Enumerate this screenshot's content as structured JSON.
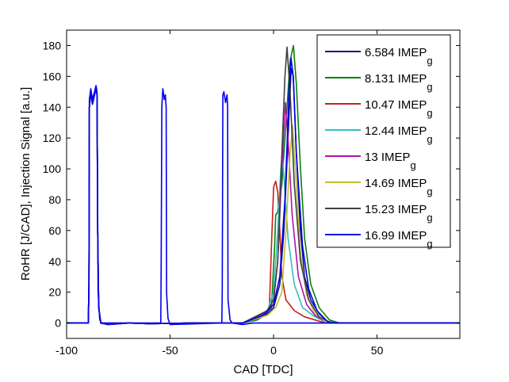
{
  "chart_data": {
    "type": "line",
    "title": "",
    "xlabel": "CAD [TDC]",
    "ylabel": "RoHR [J/CAD], Injection Signal [a.u.]",
    "xlim": [
      -100,
      90
    ],
    "ylim": [
      -10,
      190
    ],
    "xticks": [
      -100,
      -50,
      0,
      50
    ],
    "yticks": [
      0,
      20,
      40,
      60,
      80,
      100,
      120,
      140,
      160,
      180
    ],
    "grid": false,
    "legend_position": "top-right",
    "legend_subscript": "g",
    "first_pulse": [
      [
        -100,
        0
      ],
      [
        -89.5,
        0
      ],
      [
        -89.2,
        25
      ],
      [
        -89,
        140
      ],
      [
        -88.3,
        150
      ],
      [
        -87.5,
        142
      ],
      [
        -86.5,
        148
      ],
      [
        -85.8,
        152
      ],
      [
        -85.3,
        148
      ],
      [
        -85,
        60
      ],
      [
        -84.5,
        10
      ],
      [
        -83.5,
        0
      ],
      [
        -80,
        -1
      ],
      [
        -70,
        0
      ],
      [
        -60,
        -0.5
      ],
      [
        -40,
        0
      ],
      [
        -20,
        0
      ]
    ],
    "injection_trace": {
      "color": "#0000ee",
      "points": [
        [
          -100,
          0
        ],
        [
          -89.5,
          0
        ],
        [
          -89.2,
          25
        ],
        [
          -89,
          145
        ],
        [
          -88.3,
          152
        ],
        [
          -87.5,
          145
        ],
        [
          -86.5,
          150
        ],
        [
          -85.8,
          154
        ],
        [
          -85.3,
          150
        ],
        [
          -84.8,
          20
        ],
        [
          -84,
          2
        ],
        [
          -83,
          0
        ],
        [
          -54.5,
          0
        ],
        [
          -54.3,
          40
        ],
        [
          -54,
          140
        ],
        [
          -53.5,
          152
        ],
        [
          -52.8,
          145
        ],
        [
          -52.3,
          148
        ],
        [
          -51.9,
          140
        ],
        [
          -51.7,
          20
        ],
        [
          -51,
          3
        ],
        [
          -50,
          -1
        ],
        [
          -25,
          0
        ],
        [
          -24.8,
          20
        ],
        [
          -24.5,
          148
        ],
        [
          -24,
          150
        ],
        [
          -23.2,
          143
        ],
        [
          -22.5,
          148
        ],
        [
          -22.2,
          140
        ],
        [
          -22,
          15
        ],
        [
          -21,
          2
        ],
        [
          -20,
          0
        ],
        [
          -15,
          -1
        ],
        [
          -10,
          0
        ],
        [
          27,
          0
        ],
        [
          30,
          0
        ],
        [
          90,
          0
        ]
      ]
    },
    "series": [
      {
        "name": "6.584 IMEP",
        "color": "#10108c",
        "points": [
          [
            -15,
            0
          ],
          [
            -8,
            2
          ],
          [
            -3,
            6
          ],
          [
            0,
            10
          ],
          [
            3,
            25
          ],
          [
            5,
            60
          ],
          [
            7,
            120
          ],
          [
            8.5,
            165
          ],
          [
            9.5,
            160
          ],
          [
            11,
            110
          ],
          [
            13,
            60
          ],
          [
            15,
            30
          ],
          [
            18,
            15
          ],
          [
            22,
            6
          ],
          [
            26,
            1
          ],
          [
            30,
            0
          ],
          [
            90,
            0
          ]
        ]
      },
      {
        "name": "8.131 IMEP",
        "color": "#0a800a",
        "points": [
          [
            -15,
            0
          ],
          [
            -8,
            2
          ],
          [
            -4,
            6
          ],
          [
            -1,
            10
          ],
          [
            0.5,
            50
          ],
          [
            1,
            70
          ],
          [
            2,
            72
          ],
          [
            4,
            90
          ],
          [
            6,
            130
          ],
          [
            8,
            170
          ],
          [
            9.6,
            180
          ],
          [
            11,
            155
          ],
          [
            13,
            100
          ],
          [
            15,
            55
          ],
          [
            18,
            25
          ],
          [
            22,
            10
          ],
          [
            27,
            2
          ],
          [
            32,
            0
          ],
          [
            90,
            0
          ]
        ]
      },
      {
        "name": "10.47 IMEP",
        "color": "#c81e1e",
        "points": [
          [
            -15,
            0
          ],
          [
            -6,
            4
          ],
          [
            -2,
            10
          ],
          [
            -1,
            50
          ],
          [
            0,
            88
          ],
          [
            1,
            92
          ],
          [
            2,
            85
          ],
          [
            3,
            60
          ],
          [
            4,
            30
          ],
          [
            6,
            15
          ],
          [
            10,
            8
          ],
          [
            15,
            4
          ],
          [
            20,
            2
          ],
          [
            25,
            0
          ],
          [
            90,
            0
          ]
        ]
      },
      {
        "name": "12.44 IMEP",
        "color": "#30c0c0",
        "points": [
          [
            -15,
            0
          ],
          [
            -3,
            8
          ],
          [
            0,
            20
          ],
          [
            2,
            60
          ],
          [
            3.5,
            100
          ],
          [
            4.2,
            110
          ],
          [
            5,
            95
          ],
          [
            7,
            55
          ],
          [
            10,
            25
          ],
          [
            14,
            10
          ],
          [
            20,
            4
          ],
          [
            26,
            0
          ],
          [
            90,
            0
          ]
        ]
      },
      {
        "name": "13 IMEP",
        "color": "#b010b0",
        "points": [
          [
            -15,
            0
          ],
          [
            -3,
            7
          ],
          [
            0,
            15
          ],
          [
            2,
            40
          ],
          [
            4,
            100
          ],
          [
            5.7,
            143
          ],
          [
            7,
            120
          ],
          [
            9,
            70
          ],
          [
            12,
            30
          ],
          [
            16,
            12
          ],
          [
            20,
            5
          ],
          [
            26,
            0
          ],
          [
            90,
            0
          ]
        ]
      },
      {
        "name": "14.69 IMEP",
        "color": "#c0c030",
        "points": [
          [
            -15,
            0
          ],
          [
            -3,
            5
          ],
          [
            1,
            10
          ],
          [
            4,
            20
          ],
          [
            6,
            60
          ],
          [
            8,
            110
          ],
          [
            9.2,
            128
          ],
          [
            10.5,
            100
          ],
          [
            13,
            45
          ],
          [
            16,
            18
          ],
          [
            20,
            6
          ],
          [
            26,
            0
          ],
          [
            90,
            0
          ]
        ]
      },
      {
        "name": "15.23 IMEP",
        "color": "#404040",
        "points": [
          [
            -15,
            0
          ],
          [
            -3,
            8
          ],
          [
            0,
            15
          ],
          [
            2,
            40
          ],
          [
            4,
            110
          ],
          [
            5.5,
            160
          ],
          [
            6.5,
            179
          ],
          [
            8,
            150
          ],
          [
            10,
            90
          ],
          [
            13,
            40
          ],
          [
            17,
            15
          ],
          [
            22,
            4
          ],
          [
            28,
            0
          ],
          [
            90,
            0
          ]
        ]
      },
      {
        "name": "16.99 IMEP",
        "color": "#0000ee",
        "points": [
          [
            -15,
            0
          ],
          [
            -5,
            5
          ],
          [
            0,
            12
          ],
          [
            3,
            30
          ],
          [
            5.5,
            80
          ],
          [
            7.5,
            150
          ],
          [
            8.4,
            172
          ],
          [
            9.5,
            160
          ],
          [
            11,
            110
          ],
          [
            14,
            50
          ],
          [
            17,
            22
          ],
          [
            21,
            8
          ],
          [
            26,
            1
          ],
          [
            30,
            0
          ],
          [
            90,
            0
          ]
        ]
      }
    ]
  }
}
